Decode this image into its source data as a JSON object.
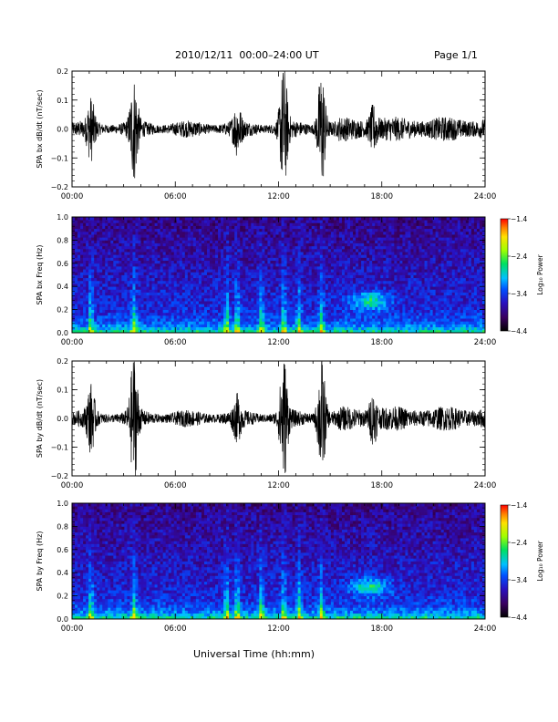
{
  "header": {
    "title": "2010/12/11  00:00–24:00 UT",
    "page": "Page 1/1"
  },
  "footer": {
    "xlabel": "Universal Time (hh:mm)"
  },
  "colors": {
    "waveform": "#000000",
    "colormap": [
      "#000000",
      "#3a0060",
      "#2a10c0",
      "#0050ff",
      "#00c0ff",
      "#00e060",
      "#a0ff00",
      "#ffe000",
      "#ff8000",
      "#ff0000"
    ]
  },
  "chart_data": [
    {
      "type": "line",
      "title": "",
      "xlabel": "",
      "ylabel": "SPA bx dB/dt (nT/sec)",
      "x_ticks": [
        "00:00",
        "06:00",
        "12:00",
        "18:00",
        "24:00"
      ],
      "xlim": [
        0,
        24
      ],
      "ylim": [
        -0.2,
        0.2
      ],
      "y_ticks": [
        "−0.2",
        "−0.1",
        "0.0",
        "0.1",
        "0.2"
      ],
      "bursts": [
        {
          "t": 1.1,
          "amp": 0.09
        },
        {
          "t": 3.6,
          "amp": 0.16
        },
        {
          "t": 9.6,
          "amp": 0.07
        },
        {
          "t": 12.3,
          "amp": 0.2
        },
        {
          "t": 14.5,
          "amp": 0.2
        },
        {
          "t": 17.5,
          "amp": 0.06
        }
      ]
    },
    {
      "type": "heatmap",
      "title": "",
      "xlabel": "",
      "ylabel": "SPA bx Freq (Hz)",
      "x_ticks": [
        "00:00",
        "06:00",
        "12:00",
        "18:00",
        "24:00"
      ],
      "xlim": [
        0,
        24
      ],
      "ylim": [
        0.0,
        1.0
      ],
      "y_ticks": [
        "0.0",
        "0.2",
        "0.4",
        "0.6",
        "0.8",
        "1.0"
      ],
      "colorbar": {
        "label": "Log₁₀ Power",
        "ticks": [
          "−1.4",
          "−2.4",
          "−3.4",
          "−4.4"
        ],
        "range": [
          -4.4,
          -1.4
        ]
      }
    },
    {
      "type": "line",
      "title": "",
      "xlabel": "",
      "ylabel": "SPA by dB/dt (nT/sec)",
      "x_ticks": [
        "00:00",
        "06:00",
        "12:00",
        "18:00",
        "24:00"
      ],
      "xlim": [
        0,
        24
      ],
      "ylim": [
        -0.2,
        0.2
      ],
      "y_ticks": [
        "−0.2",
        "−0.1",
        "0.0",
        "0.1",
        "0.2"
      ],
      "bursts": [
        {
          "t": 1.1,
          "amp": 0.1
        },
        {
          "t": 3.6,
          "amp": 0.2
        },
        {
          "t": 9.6,
          "amp": 0.06
        },
        {
          "t": 12.3,
          "amp": 0.2
        },
        {
          "t": 14.5,
          "amp": 0.2
        },
        {
          "t": 17.5,
          "amp": 0.07
        }
      ]
    },
    {
      "type": "heatmap",
      "title": "",
      "xlabel": "",
      "ylabel": "SPA by Freq (Hz)",
      "x_ticks": [
        "00:00",
        "06:00",
        "12:00",
        "18:00",
        "24:00"
      ],
      "xlim": [
        0,
        24
      ],
      "ylim": [
        0.0,
        1.0
      ],
      "y_ticks": [
        "0.0",
        "0.2",
        "0.4",
        "0.6",
        "0.8",
        "1.0"
      ],
      "colorbar": {
        "label": "Log₁₀ Power",
        "ticks": [
          "−1.4",
          "−2.4",
          "−3.4",
          "−4.4"
        ],
        "range": [
          -4.4,
          -1.4
        ]
      }
    }
  ]
}
